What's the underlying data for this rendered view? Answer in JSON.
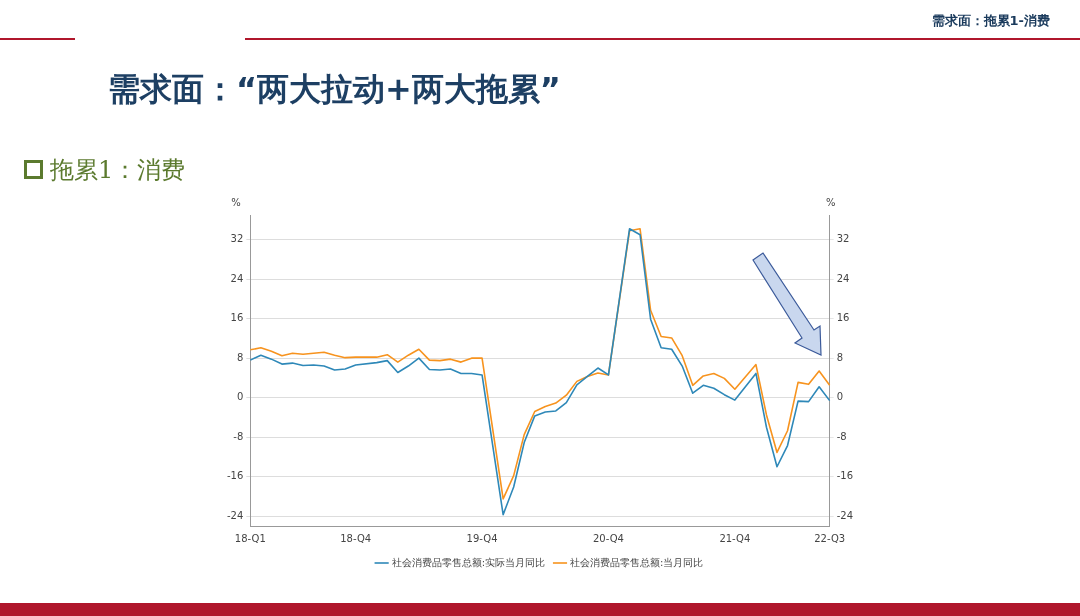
{
  "chart_data": {
    "type": "line",
    "title": "需求面：“两大拉动+两大拖累”",
    "subtitle": "拖累1：消费",
    "annotations": [
      "需求面：拖累1-消费"
    ],
    "ylabel": "%",
    "y2label": "%",
    "categories": [
      "18-Q1",
      null,
      null,
      null,
      null,
      null,
      null,
      null,
      null,
      null,
      "18-Q4",
      null,
      null,
      null,
      null,
      null,
      null,
      null,
      null,
      null,
      null,
      null,
      "19-Q4",
      null,
      null,
      null,
      null,
      null,
      null,
      null,
      null,
      null,
      null,
      null,
      "20-Q4",
      null,
      null,
      null,
      null,
      null,
      null,
      null,
      null,
      null,
      null,
      null,
      "21-Q4",
      null,
      null,
      null,
      null,
      null,
      null,
      null,
      null,
      "22-Q3"
    ],
    "series": [
      {
        "name": "社会消费品零售总额:实际当月同比",
        "color": "#2e88b8",
        "values": [
          7.6,
          8.6,
          7.8,
          6.8,
          7.0,
          6.5,
          6.6,
          6.4,
          5.6,
          5.8,
          6.6,
          null,
          7.1,
          7.5,
          5.1,
          6.4,
          8.0,
          5.7,
          5.6,
          5.8,
          4.9,
          4.9,
          4.6,
          null,
          -23.7,
          -18.1,
          -9.1,
          -3.7,
          -2.9,
          -2.7,
          -1.0,
          2.6,
          4.3,
          6.0,
          4.6,
          null,
          34.2,
          33.0,
          15.9,
          10.1,
          9.8,
          6.4,
          0.9,
          2.5,
          1.9,
          0.6,
          -0.5,
          null,
          4.9,
          -6.0,
          -14.0,
          -9.7,
          -0.7,
          -0.8,
          2.2,
          -0.6
        ]
      },
      {
        "name": "社会消费品零售总额:当月同比",
        "color": "#f7931e",
        "values": [
          9.7,
          10.1,
          9.4,
          8.5,
          9.0,
          8.8,
          9.0,
          9.2,
          8.6,
          8.1,
          8.2,
          null,
          8.2,
          8.7,
          7.2,
          8.6,
          9.8,
          7.6,
          7.5,
          7.8,
          7.2,
          8.0,
          8.0,
          null,
          -20.5,
          -15.8,
          -7.5,
          -2.8,
          -1.8,
          -1.1,
          0.5,
          3.3,
          4.3,
          5.0,
          4.6,
          null,
          33.8,
          34.2,
          17.7,
          12.4,
          12.1,
          8.5,
          2.5,
          4.4,
          4.9,
          3.9,
          1.7,
          null,
          6.7,
          -3.5,
          -11.1,
          -6.7,
          3.1,
          2.7,
          5.4,
          2.5
        ]
      }
    ],
    "ylim": [
      -26,
      37
    ],
    "yticks": [
      -24,
      -16,
      -8,
      0,
      8,
      16,
      24,
      32
    ],
    "y2lim": [
      -26,
      37
    ],
    "y2ticks": [
      -24,
      -16,
      -8,
      0,
      8,
      16,
      24,
      32
    ],
    "grid": "y",
    "legend": "bottom",
    "marker": "none",
    "line_style": "solid"
  }
}
